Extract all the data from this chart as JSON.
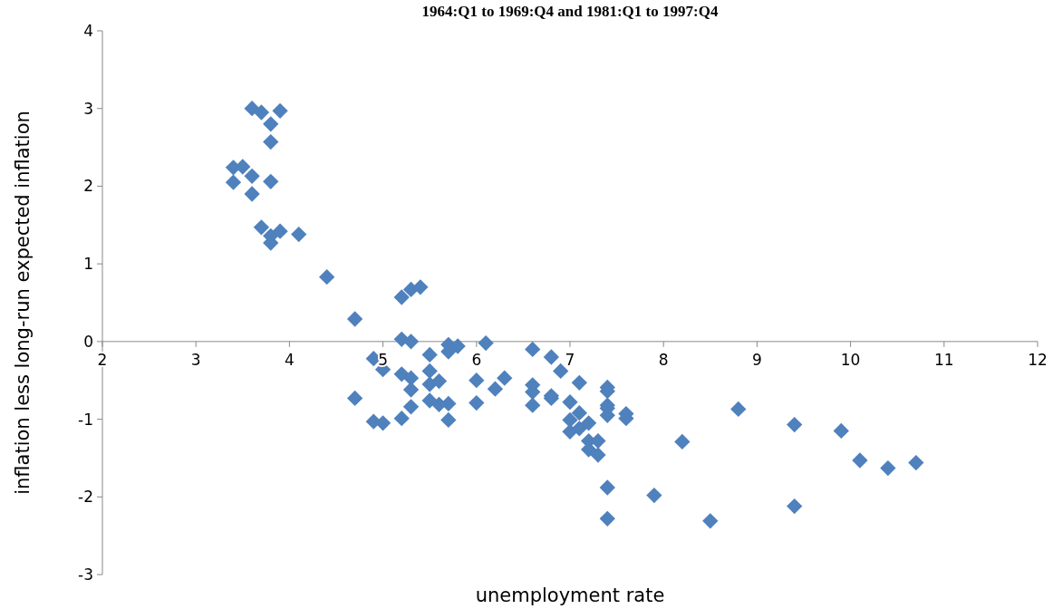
{
  "chart_data": {
    "type": "scatter",
    "title": "1964:Q1 to 1969:Q4 and 1981:Q1 to 1997:Q4",
    "xlabel": "unemployment rate",
    "ylabel": "inflation  less  long-run expected inflation",
    "marker": "diamond",
    "grid": false,
    "xlim": [
      2,
      12
    ],
    "xticks": [
      2,
      3,
      4,
      5,
      6,
      7,
      8,
      9,
      10,
      11,
      12
    ],
    "ylim": [
      -3,
      4
    ],
    "yticks": [
      -3,
      -2,
      -1,
      0,
      1,
      2,
      3,
      4
    ],
    "series": [
      {
        "color": "#4f81bd",
        "x": [
          3.6,
          3.7,
          3.9,
          3.8,
          3.8,
          3.4,
          3.5,
          3.6,
          3.4,
          3.8,
          3.6,
          3.7,
          3.8,
          3.9,
          3.8,
          4.1,
          4.4,
          4.7,
          5.2,
          5.3,
          5.4,
          5.2,
          5.3,
          5.7,
          5.8,
          6.1,
          5.5,
          5.7,
          4.7,
          4.9,
          5.0,
          4.9,
          5.0,
          5.2,
          5.3,
          5.3,
          5.3,
          5.2,
          5.5,
          5.5,
          5.6,
          5.5,
          5.6,
          5.7,
          5.7,
          6.0,
          6.0,
          6.2,
          6.3,
          6.6,
          6.6,
          6.6,
          6.6,
          6.8,
          6.8,
          6.8,
          6.9,
          7.1,
          7.0,
          7.0,
          7.1,
          7.1,
          7.0,
          7.2,
          7.2,
          7.3,
          7.2,
          7.3,
          7.4,
          7.4,
          7.4,
          7.4,
          7.4,
          7.6,
          7.6,
          7.4,
          7.4,
          7.9,
          8.2,
          8.5,
          8.8,
          9.4,
          9.4,
          9.9,
          10.1,
          10.4,
          10.7
        ],
        "values": [
          3.0,
          2.95,
          2.97,
          2.8,
          2.57,
          2.24,
          2.25,
          2.13,
          2.05,
          2.06,
          1.9,
          1.47,
          1.36,
          1.42,
          1.27,
          1.38,
          0.83,
          0.29,
          0.57,
          0.67,
          0.7,
          0.03,
          0.0,
          -0.04,
          -0.06,
          -0.02,
          -0.17,
          -0.13,
          -0.73,
          -0.22,
          -0.36,
          -1.03,
          -1.05,
          -0.42,
          -0.47,
          -0.62,
          -0.84,
          -0.99,
          -0.38,
          -0.55,
          -0.51,
          -0.76,
          -0.81,
          -0.8,
          -1.01,
          -0.79,
          -0.5,
          -0.61,
          -0.47,
          -0.1,
          -0.56,
          -0.65,
          -0.82,
          -0.2,
          -0.7,
          -0.73,
          -0.38,
          -0.53,
          -0.78,
          -1.01,
          -0.92,
          -1.12,
          -1.16,
          -1.05,
          -1.28,
          -1.28,
          -1.39,
          -1.46,
          -0.59,
          -0.64,
          -0.82,
          -0.86,
          -0.95,
          -0.93,
          -0.99,
          -1.88,
          -2.28,
          -1.98,
          -1.29,
          -2.31,
          -0.87,
          -1.07,
          -2.12,
          -1.15,
          -1.53,
          -1.63,
          -1.56
        ]
      }
    ]
  }
}
